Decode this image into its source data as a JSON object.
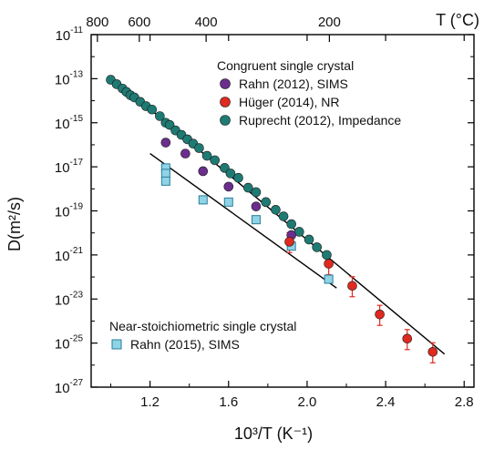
{
  "chart_data": {
    "type": "scatter",
    "title": "",
    "xlabel": "10³/T (K⁻¹)",
    "ylabel": "D(m²/s)",
    "top_axis_label": "T (°C)",
    "y_scale": "log",
    "xlim": [
      0.9,
      2.85
    ],
    "ylim_exponent": [
      -27,
      -11
    ],
    "x_ticks": [
      1.2,
      1.6,
      2.0,
      2.4,
      2.8
    ],
    "x_tick_labels": [
      "1.2",
      "1.6",
      "2.0",
      "2.4",
      "2.8"
    ],
    "y_tick_exponents": [
      -11,
      -13,
      -15,
      -17,
      -19,
      -21,
      -23,
      -25,
      -27
    ],
    "top_ticks_celsius": [
      800,
      600,
      400,
      200
    ],
    "top_tick_labels": [
      "800",
      "600",
      "400",
      "200"
    ],
    "legend": {
      "groups": [
        {
          "heading": "Congruent single crystal",
          "entries": [
            {
              "label": "Rahn (2012), SIMS",
              "series": 0
            },
            {
              "label": "Hüger (2014), NR",
              "series": 1
            },
            {
              "label": "Ruprecht (2012), Impedance",
              "series": 2
            }
          ]
        },
        {
          "heading": "Near-stoichiometric single crystal",
          "entries": [
            {
              "label": "Rahn (2015), SIMS",
              "series": 3
            }
          ]
        }
      ]
    },
    "series": [
      {
        "name": "Rahn (2012), SIMS",
        "marker": "circle",
        "color": "#6b2e8e",
        "points": [
          [
            1.28,
            -15.9
          ],
          [
            1.38,
            -16.4
          ],
          [
            1.47,
            -17.2
          ],
          [
            1.6,
            -17.9
          ],
          [
            1.74,
            -18.8
          ],
          [
            1.92,
            -20.1
          ]
        ]
      },
      {
        "name": "Hüger (2014), NR",
        "marker": "circle",
        "color": "#e02a1f",
        "points": [
          [
            1.91,
            -20.4
          ],
          [
            2.11,
            -21.4
          ],
          [
            2.23,
            -22.4
          ],
          [
            2.37,
            -23.7
          ],
          [
            2.51,
            -24.8
          ],
          [
            2.64,
            -25.4
          ]
        ],
        "error_bars": true
      },
      {
        "name": "Ruprecht (2012), Impedance",
        "marker": "circle",
        "color": "#1e7b73",
        "points": [
          [
            1.0,
            -13.05
          ],
          [
            1.03,
            -13.25
          ],
          [
            1.06,
            -13.45
          ],
          [
            1.08,
            -13.6
          ],
          [
            1.1,
            -13.75
          ],
          [
            1.12,
            -13.85
          ],
          [
            1.15,
            -14.05
          ],
          [
            1.18,
            -14.25
          ],
          [
            1.21,
            -14.4
          ],
          [
            1.25,
            -14.7
          ],
          [
            1.28,
            -15.0
          ],
          [
            1.3,
            -15.1
          ],
          [
            1.33,
            -15.35
          ],
          [
            1.36,
            -15.55
          ],
          [
            1.39,
            -15.75
          ],
          [
            1.42,
            -15.95
          ],
          [
            1.45,
            -16.15
          ],
          [
            1.49,
            -16.5
          ],
          [
            1.53,
            -16.7
          ],
          [
            1.58,
            -17.05
          ],
          [
            1.61,
            -17.3
          ],
          [
            1.65,
            -17.5
          ],
          [
            1.7,
            -17.95
          ],
          [
            1.74,
            -18.15
          ],
          [
            1.79,
            -18.6
          ],
          [
            1.84,
            -18.95
          ],
          [
            1.88,
            -19.25
          ],
          [
            1.92,
            -19.6
          ],
          [
            1.96,
            -19.95
          ],
          [
            2.01,
            -20.3
          ],
          [
            2.05,
            -20.65
          ],
          [
            2.1,
            -21.0
          ]
        ]
      },
      {
        "name": "Rahn (2015), SIMS",
        "marker": "square",
        "color": "#8fd3e6",
        "points": [
          [
            1.28,
            -17.05
          ],
          [
            1.28,
            -17.3
          ],
          [
            1.28,
            -17.65
          ],
          [
            1.47,
            -18.5
          ],
          [
            1.6,
            -18.6
          ],
          [
            1.74,
            -19.4
          ],
          [
            1.92,
            -20.6
          ],
          [
            2.11,
            -22.1
          ]
        ]
      }
    ],
    "fit_lines": [
      {
        "x": [
          1.0,
          2.7
        ],
        "y": [
          -12.9,
          -25.5
        ]
      },
      {
        "x": [
          1.2,
          2.15
        ],
        "y": [
          -16.4,
          -22.5
        ]
      }
    ]
  }
}
